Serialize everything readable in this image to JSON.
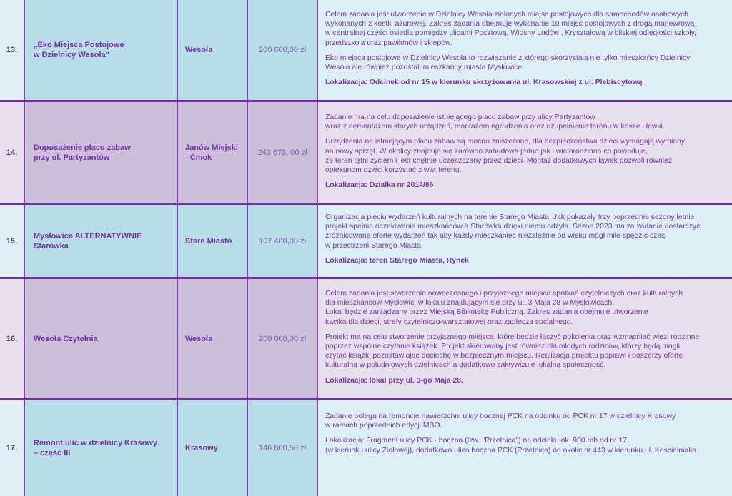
{
  "colors": {
    "border": "#7030a0",
    "text": "#7430a6",
    "row_blue": "#b7dde7",
    "row_purple": "#cbbfd9"
  },
  "rows": [
    {
      "num": "13.",
      "title": "„Eko Miejsca Postojowe\nw Dzielnicy Wesoła\"",
      "district": "Wesoła",
      "amount": "200 600,00 zł",
      "paragraphs": [
        "Celem zadania jest utworzenie w Dzielnicy Wesoła zielonych miejsc postojowych dla samochodów osobowych\nwykonanych z kostki ażurowej. Zakres zadania obejmuje wykonanie 10 miejsc postojowych z drogą manewrową\nw centralnej części osiedla pomiędzy ulicami Pocztową, Wiosny Ludów , Kryształową w bliskiej odległości szkoły,\nprzedszkola oraz pawilonów i sklepów.",
        "Eko miejsca postojowe w Dzielnicy Wesoła to rozwiązanie z którego skorzystają nie tylko mieszkańcy Dzielnicy\nWesoła ale również pozostali mieszkańcy miasta Mysłowice."
      ],
      "location": "Lokalizacja: Odcinek od nr 15 w kierunku skrzyżowania ul. Krasowskiej z ul. Plebiscytową"
    },
    {
      "num": "14.",
      "title": "Doposażenie placu zabaw\nprzy ul. Partyzantów",
      "district": "Janów Miejski\n- Ćmok",
      "amount": "243 673, 00 zł",
      "paragraphs": [
        "Zadanie ma na celu doposażenie istniejącego placu zabaw przy ulicy Partyzantów\nwraz z demontażem starych urządzeń, montażem ogrodzenia oraz uzupełnienie terenu w kosze i ławki.",
        "Urządzenia na istniejącym placu zabaw są mocno zniszczone, dla bezpieczeństwa dzieci wymagają wymiany\nna nowy sprzęt. W okolicy znajduje się zarówno zabudowa jedno jak i wielorodzinna co powoduje,\nże teren tętni życiem i jest chętnie uczęszczany przez dzieci. Montaż dodatkowych ławek pozwoli również\nopiekunom dzieci korzystać z ww. terenu."
      ],
      "location": "Lokalizacja: Działka nr 2014/86"
    },
    {
      "num": "15.",
      "title": "Mysłowice ALTERNATYWNIE\nStarówka",
      "district": "Stare Miasto",
      "amount": "107 400,00 zł",
      "paragraphs": [
        "Organizacja pięciu wydarzeń kulturalnych na terenie Starego Miasta. Jak pokazały trzy poprzednie sezony letnie\nprojekt spełnia oczekiwania mieszkańców a Starówka dzięki niemu odżyła. Sezon 2023 ma za zadanie dostarczyć\nzróżnicowaną oferte wydarzeń tak aby każdy mieszkaniec niezależnie od wieku mógł miło spędzić czas\nw przestrzeni Starego Miasta"
      ],
      "location": "Lokalizacja: teren Starego Miasta, Rynek"
    },
    {
      "num": "16.",
      "title": "Wesoła Czytelnia",
      "district": "Wesoła",
      "amount": "200 000,00 zł",
      "paragraphs": [
        "Celem zadania jest stworzenie nowoczesnego i przyjaznego miejsca spotkań czytelniczych oraz kulturalnych\ndla mieszkańców Mysłowic, w lokalu znajdującym się przy ul. 3 Maja 28 w Mysłowicach.\nLokal będzie zarządzany przez Miejską Bibliotekę Publiczną. Zakres zadania obejmuje utworzenie\nkącika dla dzieci, strefy czytelniczo-warsztatowej oraz zaplecza socjalnego.",
        "Projekt ma na celu stworzenie przyjaznego miejsca, które będzie łączyć pokolenia oraz wzmacniać więzi rodzinne\npoprzez wspólne czytanie książek. Projekt skierowany jest również dla młodych rodziców, którzy będą mogli\nczytać książki pozostawiając pociechę w bezpiecznym miejscu. Realizacja projektu poprawi i poszerzy ofertę\nkulturalną w południowych dzielnicach a dodatkowo zaktywizuje lokalną społeczność."
      ],
      "location": "Lokalizacja: lokal przy ul. 3-go Maja 28."
    },
    {
      "num": "17.",
      "title": "Remont ulic w dzielnicy Krasowy\n– część III",
      "district": "Krasowy",
      "amount": "146 800,50 zł",
      "paragraphs": [
        "Zadanie polega na remoncie nawierzchni ulicy bocznej PCK na odcinku od PCK nr 17 w dzielnicy Krasowy\nw ramach poprzednich edycji MBO."
      ],
      "location": "Lokalizacja: Fragment ulicy PCK - boczna (tzw. \"Przetnica\") na odcinku ok. 900 mb od nr 17\n (w kierunku ulicy Ziołowej), dodatkowo ulica boczna PCK (Przetnica) od okolic nr 443 w kierunku ul. Kościelniaka."
    }
  ]
}
